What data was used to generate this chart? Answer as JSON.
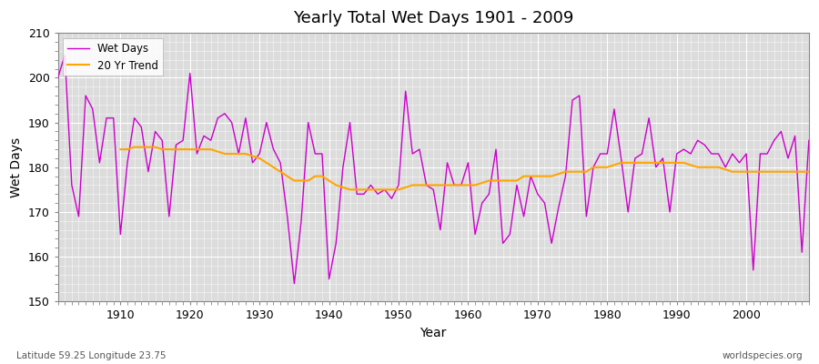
{
  "title": "Yearly Total Wet Days 1901 - 2009",
  "xlabel": "Year",
  "ylabel": "Wet Days",
  "subtitle_left": "Latitude 59.25 Longitude 23.75",
  "subtitle_right": "worldspecies.org",
  "ylim": [
    150,
    210
  ],
  "yticks": [
    150,
    160,
    170,
    180,
    190,
    200,
    210
  ],
  "wet_days_color": "#CC00CC",
  "trend_color": "#FFA500",
  "background_color": "#DCDCDC",
  "figsize": [
    9.0,
    4.0
  ],
  "dpi": 100,
  "wet_days": {
    "1901": 200,
    "1902": 205,
    "1903": 176,
    "1904": 169,
    "1905": 196,
    "1906": 193,
    "1907": 181,
    "1908": 191,
    "1909": 191,
    "1910": 165,
    "1911": 181,
    "1912": 191,
    "1913": 189,
    "1914": 179,
    "1915": 188,
    "1916": 186,
    "1917": 169,
    "1918": 185,
    "1919": 186,
    "1920": 201,
    "1921": 183,
    "1922": 187,
    "1923": 186,
    "1924": 191,
    "1925": 192,
    "1926": 190,
    "1927": 183,
    "1928": 191,
    "1929": 181,
    "1930": 183,
    "1931": 190,
    "1932": 184,
    "1933": 181,
    "1934": 169,
    "1935": 154,
    "1936": 168,
    "1937": 190,
    "1938": 183,
    "1939": 183,
    "1940": 155,
    "1941": 163,
    "1942": 180,
    "1943": 190,
    "1944": 174,
    "1945": 174,
    "1946": 176,
    "1947": 174,
    "1948": 175,
    "1949": 173,
    "1950": 176,
    "1951": 197,
    "1952": 183,
    "1953": 184,
    "1954": 176,
    "1955": 175,
    "1956": 166,
    "1957": 181,
    "1958": 176,
    "1959": 176,
    "1960": 181,
    "1961": 165,
    "1962": 172,
    "1963": 174,
    "1964": 184,
    "1965": 163,
    "1966": 165,
    "1967": 176,
    "1968": 169,
    "1969": 178,
    "1970": 174,
    "1971": 172,
    "1972": 163,
    "1973": 171,
    "1974": 178,
    "1975": 195,
    "1976": 196,
    "1977": 169,
    "1978": 180,
    "1979": 183,
    "1980": 183,
    "1981": 193,
    "1982": 182,
    "1983": 170,
    "1984": 182,
    "1985": 183,
    "1986": 191,
    "1987": 180,
    "1988": 182,
    "1989": 170,
    "1990": 183,
    "1991": 184,
    "1992": 183,
    "1993": 186,
    "1994": 185,
    "1995": 183,
    "1996": 183,
    "1997": 180,
    "1998": 183,
    "1999": 181,
    "2000": 183,
    "2001": 157,
    "2002": 183,
    "2003": 183,
    "2004": 186,
    "2005": 188,
    "2006": 182,
    "2007": 187,
    "2008": 161,
    "2009": 186
  },
  "trend_20yr": {
    "1910": 184,
    "1911": 184,
    "1912": 184.5,
    "1913": 184.5,
    "1914": 184.5,
    "1915": 184.5,
    "1916": 184,
    "1917": 184,
    "1918": 184,
    "1919": 184,
    "1920": 184,
    "1921": 184,
    "1922": 184,
    "1923": 184,
    "1924": 183.5,
    "1925": 183,
    "1926": 183,
    "1927": 183,
    "1928": 183,
    "1929": 182.5,
    "1930": 182,
    "1931": 181,
    "1932": 180,
    "1933": 179,
    "1934": 178,
    "1935": 177,
    "1936": 177,
    "1937": 177,
    "1938": 178,
    "1939": 178,
    "1940": 177,
    "1941": 176,
    "1942": 175.5,
    "1943": 175,
    "1944": 175,
    "1945": 175,
    "1946": 175,
    "1947": 175,
    "1948": 175,
    "1949": 175,
    "1950": 175,
    "1951": 175.5,
    "1952": 176,
    "1953": 176,
    "1954": 176,
    "1955": 176,
    "1956": 176,
    "1957": 176,
    "1958": 176,
    "1959": 176,
    "1960": 176,
    "1961": 176,
    "1962": 176.5,
    "1963": 177,
    "1964": 177,
    "1965": 177,
    "1966": 177,
    "1967": 177,
    "1968": 178,
    "1969": 178,
    "1970": 178,
    "1971": 178,
    "1972": 178,
    "1973": 178.5,
    "1974": 179,
    "1975": 179,
    "1976": 179,
    "1977": 179,
    "1978": 180,
    "1979": 180,
    "1980": 180,
    "1981": 180.5,
    "1982": 181,
    "1983": 181,
    "1984": 181,
    "1985": 181,
    "1986": 181,
    "1987": 181,
    "1988": 181,
    "1989": 181,
    "1990": 181,
    "1991": 181,
    "1992": 180.5,
    "1993": 180,
    "1994": 180,
    "1995": 180,
    "1996": 180,
    "1997": 179.5,
    "1998": 179,
    "1999": 179,
    "2000": 179,
    "2001": 179,
    "2002": 179,
    "2003": 179,
    "2004": 179,
    "2005": 179,
    "2006": 179,
    "2007": 179,
    "2008": 179,
    "2009": 179
  }
}
